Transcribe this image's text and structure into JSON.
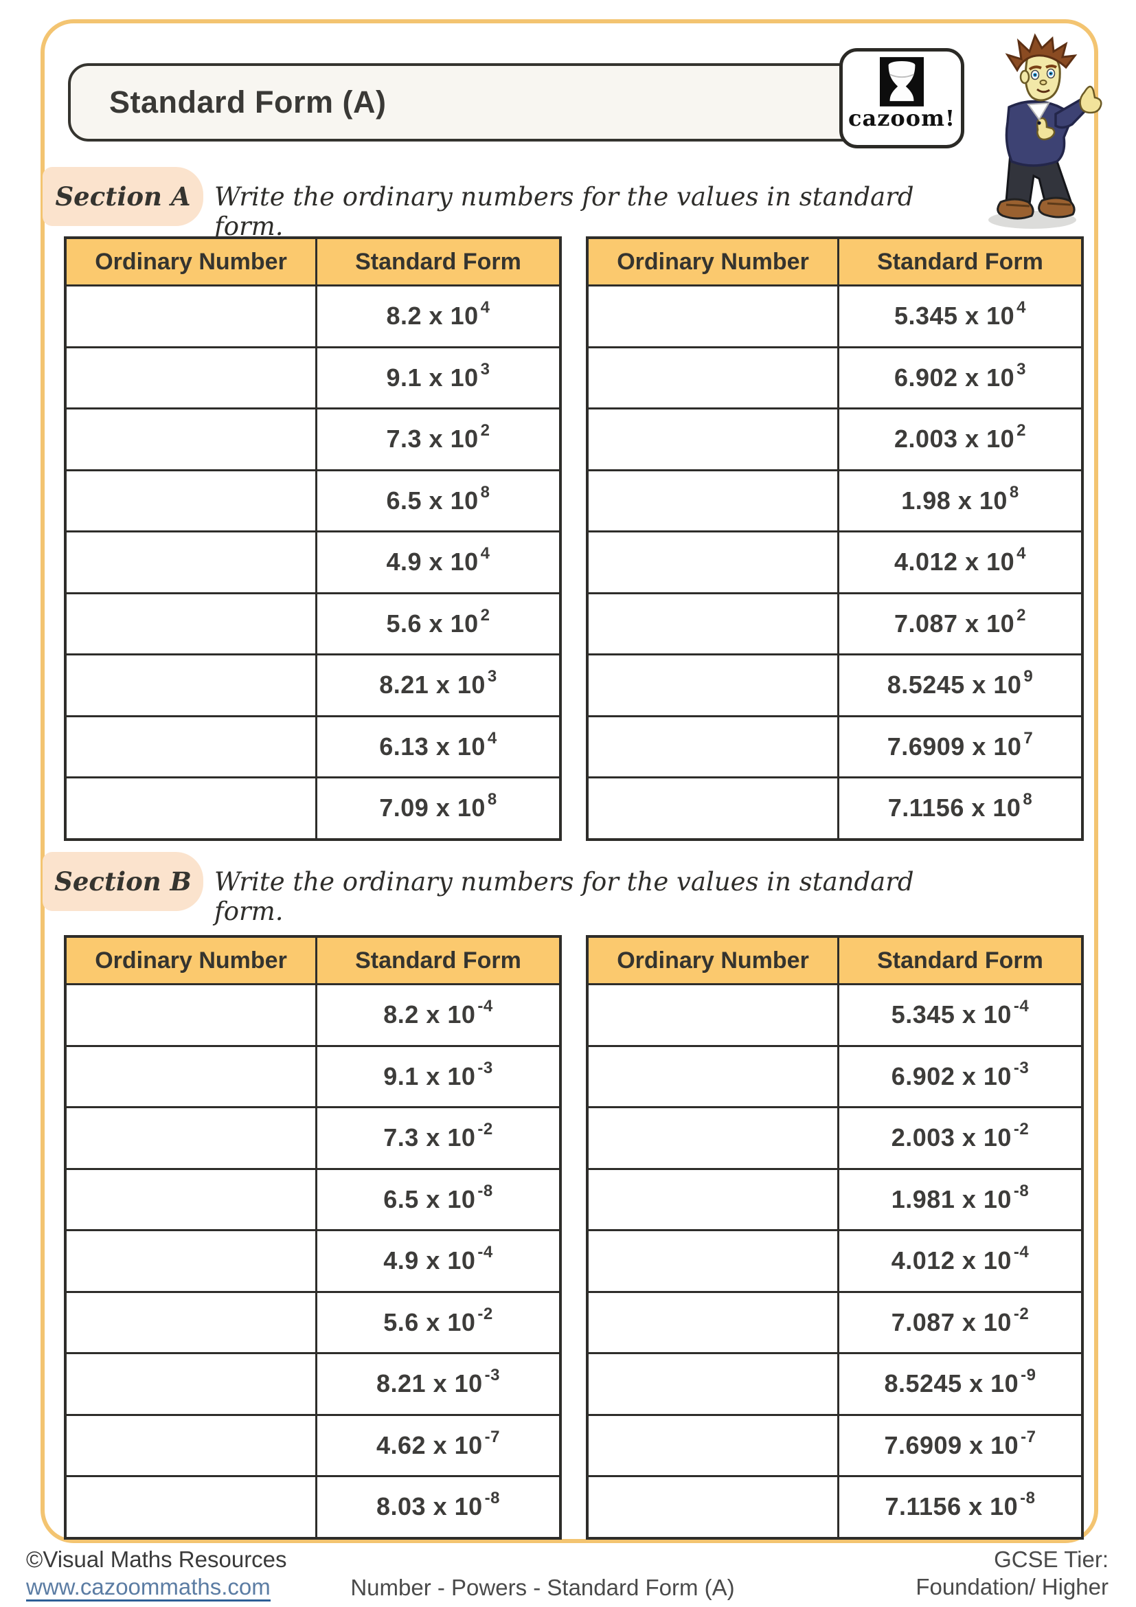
{
  "page": {
    "title": "Standard Form (A)",
    "logo_text": "cazoom!"
  },
  "columns": {
    "ordinary": "Ordinary Number",
    "standard": "Standard Form"
  },
  "sections": [
    {
      "label": "Section A",
      "instruction": "Write the ordinary numbers for the values in standard form.",
      "tables": [
        {
          "values": [
            {
              "m": "8.2",
              "e": "4"
            },
            {
              "m": "9.1",
              "e": "3"
            },
            {
              "m": "7.3",
              "e": "2"
            },
            {
              "m": "6.5",
              "e": "8"
            },
            {
              "m": "4.9",
              "e": "4"
            },
            {
              "m": "5.6",
              "e": "2"
            },
            {
              "m": "8.21",
              "e": "3"
            },
            {
              "m": "6.13",
              "e": "4"
            },
            {
              "m": "7.09",
              "e": "8"
            }
          ]
        },
        {
          "values": [
            {
              "m": "5.345",
              "e": "4"
            },
            {
              "m": "6.902",
              "e": "3"
            },
            {
              "m": "2.003",
              "e": "2"
            },
            {
              "m": "1.98",
              "e": "8"
            },
            {
              "m": "4.012",
              "e": "4"
            },
            {
              "m": "7.087",
              "e": "2"
            },
            {
              "m": "8.5245",
              "e": "9"
            },
            {
              "m": "7.6909",
              "e": "7"
            },
            {
              "m": "7.1156",
              "e": "8"
            }
          ]
        }
      ]
    },
    {
      "label": "Section B",
      "instruction": "Write the ordinary numbers for the values in standard form.",
      "tables": [
        {
          "values": [
            {
              "m": "8.2",
              "e": "-4"
            },
            {
              "m": "9.1",
              "e": "-3"
            },
            {
              "m": "7.3",
              "e": "-2"
            },
            {
              "m": "6.5",
              "e": "-8"
            },
            {
              "m": "4.9",
              "e": "-4"
            },
            {
              "m": "5.6",
              "e": "-2"
            },
            {
              "m": "8.21",
              "e": "-3"
            },
            {
              "m": "4.62",
              "e": "-7"
            },
            {
              "m": "8.03",
              "e": "-8"
            }
          ]
        },
        {
          "values": [
            {
              "m": "5.345",
              "e": "-4"
            },
            {
              "m": "6.902",
              "e": "-3"
            },
            {
              "m": "2.003",
              "e": "-2"
            },
            {
              "m": "1.981",
              "e": "-8"
            },
            {
              "m": "4.012",
              "e": "-4"
            },
            {
              "m": "7.087",
              "e": "-2"
            },
            {
              "m": "8.5245",
              "e": "-9"
            },
            {
              "m": "7.6909",
              "e": "-7"
            },
            {
              "m": "7.1156",
              "e": "-8"
            }
          ]
        }
      ]
    }
  ],
  "footer": {
    "copyright": "©Visual Maths Resources",
    "website": "www.cazoommaths.com",
    "center": "Number - Powers - Standard Form (A)",
    "tier_label": "GCSE Tier:",
    "tier_value": "Foundation/ Higher"
  },
  "colors": {
    "page_border": "#F3C471",
    "table_header_bg": "#FBC96E",
    "section_label_bg": "#FBE3CD",
    "table_border": "#2E2D2A",
    "link_blue": "#2D5F96"
  }
}
